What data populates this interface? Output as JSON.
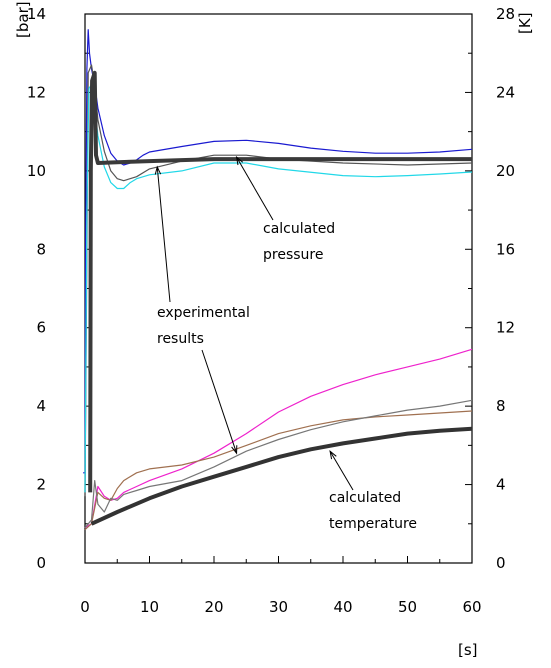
{
  "chart_data": {
    "type": "line",
    "title": "",
    "xlabel": "[s]",
    "ylabel_left": "[bar]",
    "ylabel_right": "[K]",
    "xlim": [
      0,
      60
    ],
    "ylim_left": [
      0,
      14
    ],
    "ylim_right": [
      0,
      28
    ],
    "x_ticks": [
      0,
      10,
      20,
      30,
      40,
      50,
      60
    ],
    "y_left_ticks": [
      0,
      2,
      4,
      6,
      8,
      10,
      12,
      14
    ],
    "y_right_ticks": [
      0,
      4,
      8,
      12,
      16,
      20,
      24,
      28
    ],
    "grid": false,
    "legend": "none",
    "series": [
      {
        "axis": "left",
        "color": "#1a1ad0",
        "width": 1.2,
        "points": [
          [
            -0.3,
            2.3
          ],
          [
            0,
            2.3
          ],
          [
            0.1,
            8
          ],
          [
            0.3,
            12.6
          ],
          [
            0.5,
            13.6
          ],
          [
            0.7,
            13.0
          ],
          [
            1,
            12.6
          ],
          [
            1.5,
            12.2
          ],
          [
            2,
            11.6
          ],
          [
            3,
            10.9
          ],
          [
            4,
            10.45
          ],
          [
            5,
            10.25
          ],
          [
            6,
            10.15
          ],
          [
            7,
            10.2
          ],
          [
            8,
            10.28
          ],
          [
            9,
            10.4
          ],
          [
            10,
            10.48
          ],
          [
            15,
            10.62
          ],
          [
            20,
            10.75
          ],
          [
            25,
            10.78
          ],
          [
            30,
            10.7
          ],
          [
            35,
            10.58
          ],
          [
            40,
            10.5
          ],
          [
            45,
            10.45
          ],
          [
            50,
            10.45
          ],
          [
            55,
            10.48
          ],
          [
            60,
            10.55
          ]
        ]
      },
      {
        "axis": "left",
        "color": "#555555",
        "width": 1.2,
        "points": [
          [
            0,
            1.7
          ],
          [
            0.2,
            6
          ],
          [
            0.5,
            12.5
          ],
          [
            1,
            12.7
          ],
          [
            1.5,
            12.2
          ],
          [
            2,
            11.3
          ],
          [
            3,
            10.5
          ],
          [
            4,
            10.0
          ],
          [
            5,
            9.8
          ],
          [
            6,
            9.75
          ],
          [
            8,
            9.85
          ],
          [
            10,
            10.05
          ],
          [
            15,
            10.25
          ],
          [
            20,
            10.4
          ],
          [
            25,
            10.4
          ],
          [
            30,
            10.3
          ],
          [
            40,
            10.2
          ],
          [
            50,
            10.15
          ],
          [
            60,
            10.2
          ]
        ]
      },
      {
        "axis": "left",
        "color": "#22d8e8",
        "width": 1.2,
        "points": [
          [
            0,
            1.8
          ],
          [
            0.3,
            9
          ],
          [
            0.6,
            12.1
          ],
          [
            1,
            12.2
          ],
          [
            1.5,
            11.6
          ],
          [
            2,
            10.9
          ],
          [
            3,
            10.1
          ],
          [
            4,
            9.7
          ],
          [
            5,
            9.55
          ],
          [
            6,
            9.55
          ],
          [
            7,
            9.7
          ],
          [
            8,
            9.8
          ],
          [
            10,
            9.9
          ],
          [
            15,
            10.0
          ],
          [
            20,
            10.2
          ],
          [
            25,
            10.2
          ],
          [
            30,
            10.05
          ],
          [
            40,
            9.88
          ],
          [
            45,
            9.85
          ],
          [
            50,
            9.88
          ],
          [
            55,
            9.92
          ],
          [
            60,
            9.97
          ]
        ]
      },
      {
        "axis": "left",
        "color": "#3a3a3a",
        "width": 4,
        "points": [
          [
            0.8,
            1.8
          ],
          [
            0.9,
            10
          ],
          [
            1.1,
            12.3
          ],
          [
            1.5,
            12.5
          ],
          [
            1.7,
            10.4
          ],
          [
            2,
            10.2
          ],
          [
            5,
            10.22
          ],
          [
            10,
            10.25
          ],
          [
            20,
            10.3
          ],
          [
            30,
            10.3
          ],
          [
            40,
            10.3
          ],
          [
            50,
            10.3
          ],
          [
            60,
            10.3
          ]
        ]
      },
      {
        "axis": "right",
        "color": "#ee22cc",
        "width": 1.2,
        "points": [
          [
            0,
            1.8
          ],
          [
            1,
            2.0
          ],
          [
            2,
            3.9
          ],
          [
            3,
            3.4
          ],
          [
            4,
            3.2
          ],
          [
            5,
            3.3
          ],
          [
            6,
            3.6
          ],
          [
            8,
            3.9
          ],
          [
            10,
            4.2
          ],
          [
            15,
            4.8
          ],
          [
            20,
            5.6
          ],
          [
            25,
            6.6
          ],
          [
            30,
            7.7
          ],
          [
            35,
            8.5
          ],
          [
            40,
            9.1
          ],
          [
            45,
            9.6
          ],
          [
            50,
            10.0
          ],
          [
            55,
            10.4
          ],
          [
            60,
            10.9
          ]
        ]
      },
      {
        "axis": "right",
        "color": "#a07050",
        "width": 1.2,
        "points": [
          [
            0,
            1.7
          ],
          [
            1,
            2.0
          ],
          [
            2,
            3.6
          ],
          [
            3,
            3.3
          ],
          [
            4,
            3.2
          ],
          [
            5,
            3.8
          ],
          [
            6,
            4.2
          ],
          [
            8,
            4.6
          ],
          [
            10,
            4.8
          ],
          [
            15,
            5.0
          ],
          [
            20,
            5.4
          ],
          [
            25,
            6.0
          ],
          [
            30,
            6.6
          ],
          [
            35,
            7.0
          ],
          [
            40,
            7.3
          ],
          [
            45,
            7.45
          ],
          [
            50,
            7.55
          ],
          [
            55,
            7.65
          ],
          [
            60,
            7.75
          ]
        ]
      },
      {
        "axis": "right",
        "color": "#777777",
        "width": 1.2,
        "points": [
          [
            0,
            1.8
          ],
          [
            1,
            2.2
          ],
          [
            1.5,
            4.2
          ],
          [
            2,
            3.0
          ],
          [
            3,
            2.6
          ],
          [
            4,
            3.3
          ],
          [
            5,
            3.2
          ],
          [
            6,
            3.5
          ],
          [
            8,
            3.7
          ],
          [
            10,
            3.9
          ],
          [
            15,
            4.2
          ],
          [
            20,
            4.9
          ],
          [
            25,
            5.7
          ],
          [
            30,
            6.3
          ],
          [
            35,
            6.8
          ],
          [
            40,
            7.2
          ],
          [
            45,
            7.5
          ],
          [
            50,
            7.8
          ],
          [
            55,
            8.0
          ],
          [
            60,
            8.3
          ]
        ]
      },
      {
        "axis": "right",
        "color": "#333333",
        "width": 4,
        "points": [
          [
            1,
            2.0
          ],
          [
            5,
            2.6
          ],
          [
            10,
            3.3
          ],
          [
            15,
            3.9
          ],
          [
            20,
            4.4
          ],
          [
            25,
            4.9
          ],
          [
            30,
            5.4
          ],
          [
            35,
            5.8
          ],
          [
            40,
            6.1
          ],
          [
            45,
            6.35
          ],
          [
            50,
            6.6
          ],
          [
            55,
            6.75
          ],
          [
            60,
            6.85
          ]
        ]
      }
    ],
    "annotations": [
      {
        "lines": [
          "calculated",
          "pressure"
        ],
        "arrow_from": [
          41,
          8.9
        ],
        "arrow_to": [
          23.5,
          10.35
        ]
      },
      {
        "lines": [
          "experimental",
          "results"
        ],
        "arrow_from": [
          13.5,
          6.0
        ],
        "arrow_to": [
          11.2,
          10.1
        ],
        "arrow2_from": [
          20.5,
          5.7
        ],
        "arrow2_to": [
          23.5,
          2.8
        ]
      },
      {
        "lines": [
          "calculated",
          "temperature"
        ],
        "arrow_from": [
          44,
          1.7
        ],
        "arrow_to": [
          38,
          2.85
        ]
      }
    ]
  }
}
